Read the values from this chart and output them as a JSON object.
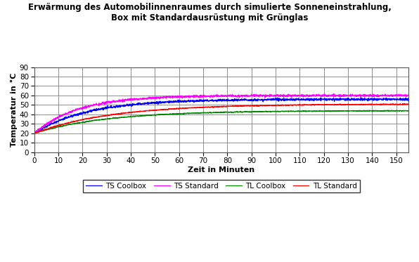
{
  "title_line1": "Erwärmung des Automobilinnenraumes durch simulierte Sonneneinstrahlung,",
  "title_line2": "Box mit Standardausrüstung mit Grünglas",
  "xlabel": "Zeit in Minuten",
  "ylabel": "Temperatur in °C",
  "xlim": [
    0,
    155
  ],
  "ylim": [
    0,
    90
  ],
  "xticks": [
    0,
    10,
    20,
    30,
    40,
    50,
    60,
    70,
    80,
    90,
    100,
    110,
    120,
    130,
    140,
    150
  ],
  "yticks": [
    0,
    10,
    20,
    30,
    40,
    50,
    60,
    70,
    80,
    90
  ],
  "series": {
    "TS Coolbox": {
      "color": "#0000FF",
      "final": 56.0,
      "start": 20.0,
      "tau": 22.0,
      "noise": 0.6
    },
    "TS Standard": {
      "color": "#FF00FF",
      "final": 60.0,
      "start": 20.0,
      "tau": 18.0,
      "noise": 0.6
    },
    "TL Coolbox": {
      "color": "#008800",
      "final": 44.0,
      "start": 20.0,
      "tau": 30.0,
      "noise": 0.25
    },
    "TL Standard": {
      "color": "#FF0000",
      "final": 51.0,
      "start": 20.0,
      "tau": 32.0,
      "noise": 0.25
    }
  },
  "background_color": "#FFFFFF",
  "plot_background": "#FFFFFF",
  "grid_color": "#808080",
  "title_fontsize": 8.5,
  "axis_label_fontsize": 8,
  "tick_fontsize": 7.5,
  "legend_fontsize": 7.5
}
